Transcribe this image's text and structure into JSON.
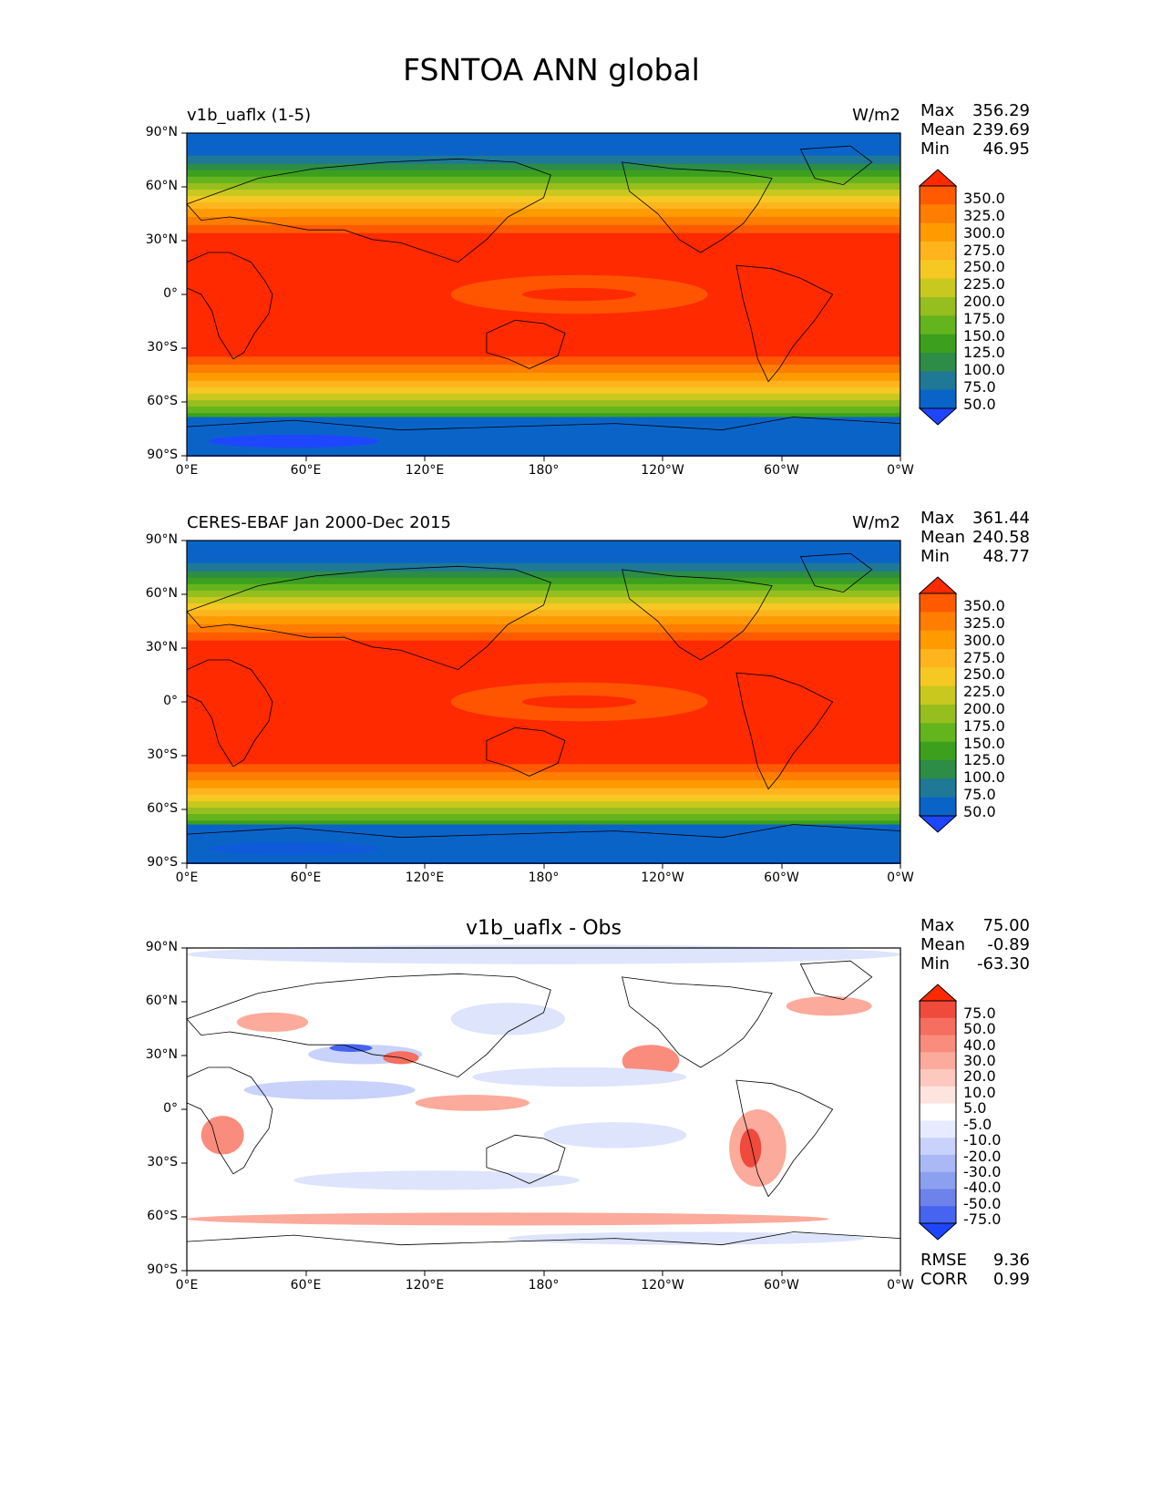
{
  "figure": {
    "title": "FSNTOA ANN global"
  },
  "axes": {
    "lat_ticks": [
      "90°N",
      "60°N",
      "30°N",
      "0°",
      "30°S",
      "60°S",
      "90°S"
    ],
    "lon_ticks": [
      "0°E",
      "60°E",
      "120°E",
      "180°",
      "120°W",
      "60°W",
      "0°W"
    ]
  },
  "stat_labels": {
    "max": "Max",
    "mean": "Mean",
    "min": "Min",
    "rmse": "RMSE",
    "corr": "CORR"
  },
  "panels": [
    {
      "title": "v1b_uaflx (1-5)",
      "units": "W/m2",
      "stats": {
        "max": "356.29",
        "mean": "239.69",
        "min": "46.95"
      },
      "colorbar": {
        "labels": [
          "350.0",
          "325.0",
          "300.0",
          "275.0",
          "250.0",
          "225.0",
          "200.0",
          "175.0",
          "150.0",
          "125.0",
          "100.0",
          "75.0",
          "50.0"
        ],
        "colors": [
          "#ff2a00",
          "#ff5a00",
          "#ff7d00",
          "#ff9a00",
          "#ffb41e",
          "#f5c823",
          "#c8c81e",
          "#96be1e",
          "#64b41e",
          "#3ca01e",
          "#2d8c46",
          "#1e7896",
          "#0a64c8",
          "#1e46ff"
        ]
      }
    },
    {
      "title": "CERES-EBAF Jan 2000-Dec 2015",
      "units": "W/m2",
      "stats": {
        "max": "361.44",
        "mean": "240.58",
        "min": "48.77"
      },
      "colorbar": {
        "labels": [
          "350.0",
          "325.0",
          "300.0",
          "275.0",
          "250.0",
          "225.0",
          "200.0",
          "175.0",
          "150.0",
          "125.0",
          "100.0",
          "75.0",
          "50.0"
        ],
        "colors": [
          "#ff2a00",
          "#ff5a00",
          "#ff7d00",
          "#ff9a00",
          "#ffb41e",
          "#f5c823",
          "#c8c81e",
          "#96be1e",
          "#64b41e",
          "#3ca01e",
          "#2d8c46",
          "#1e7896",
          "#0a64c8",
          "#1e46ff"
        ]
      }
    },
    {
      "title": "v1b_uaflx - Obs",
      "units": "",
      "stats": {
        "max": "75.00",
        "mean": "-0.89",
        "min": "-63.30",
        "rmse": "9.36",
        "corr": "0.99"
      },
      "colorbar": {
        "labels": [
          "75.0",
          "50.0",
          "40.0",
          "30.0",
          "20.0",
          "10.0",
          "5.0",
          "-5.0",
          "-10.0",
          "-20.0",
          "-30.0",
          "-40.0",
          "-50.0",
          "-75.0"
        ],
        "colors": [
          "#ff2a00",
          "#f04a3c",
          "#f56e5f",
          "#fa8c7d",
          "#fcaa9b",
          "#fdc8be",
          "#fee4de",
          "#ffffff",
          "#e6ebff",
          "#c8d2fa",
          "#aab9f5",
          "#8ca0f0",
          "#6e82eb",
          "#4664f0",
          "#1e46ff"
        ]
      }
    }
  ]
}
